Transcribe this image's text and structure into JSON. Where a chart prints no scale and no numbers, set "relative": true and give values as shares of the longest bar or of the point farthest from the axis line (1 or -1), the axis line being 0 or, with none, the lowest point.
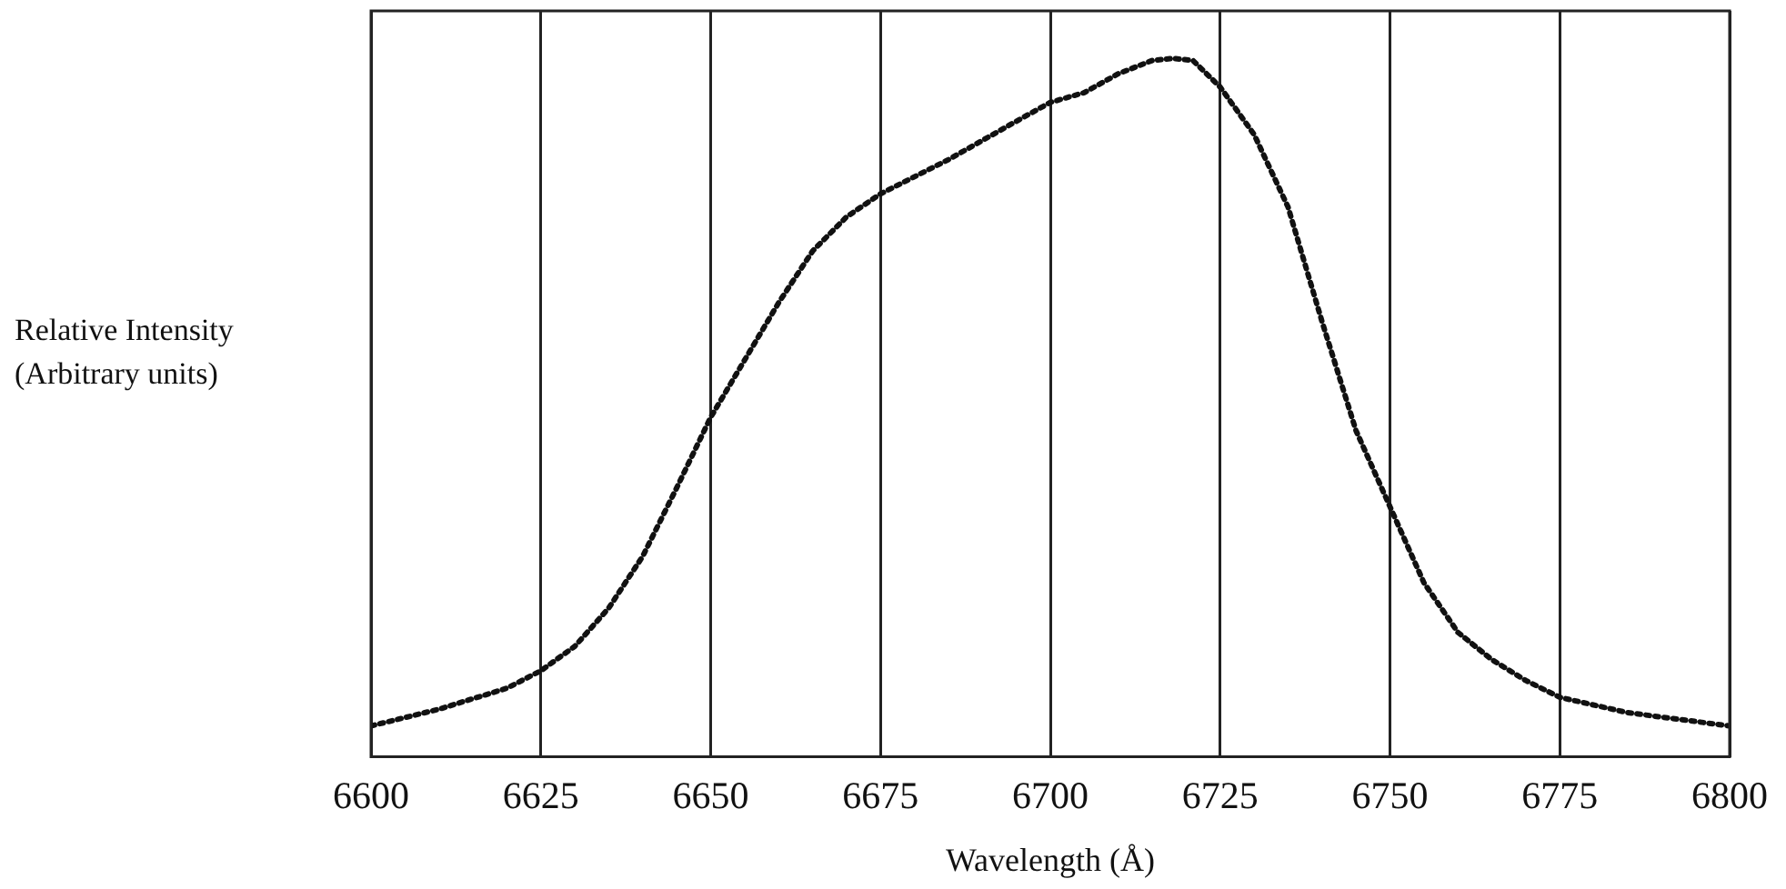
{
  "chart_data": {
    "type": "line",
    "relative": true,
    "xlabel": "Wavelength (Å)",
    "ylabel": "Relative Intensity (Arbitrary units)",
    "xlim": [
      6600,
      6800
    ],
    "xticks": [
      6600,
      6625,
      6650,
      6675,
      6700,
      6725,
      6750,
      6775,
      6800
    ],
    "grid": "x",
    "legend": false,
    "marker": "none",
    "line_style": "dotted",
    "series": [
      {
        "color": "#111111",
        "x": [
          6600,
          6610,
          6620,
          6625,
          6630,
          6635,
          6640,
          6645,
          6650,
          6655,
          6660,
          6665,
          6670,
          6675,
          6685,
          6695,
          6700,
          6705,
          6710,
          6715,
          6718,
          6721,
          6725,
          6730,
          6735,
          6740,
          6745,
          6750,
          6755,
          6760,
          6765,
          6770,
          6775,
          6785,
          6800
        ],
        "values": [
          0.044,
          0.068,
          0.098,
          0.123,
          0.158,
          0.213,
          0.287,
          0.385,
          0.486,
          0.568,
          0.65,
          0.724,
          0.773,
          0.806,
          0.855,
          0.91,
          0.937,
          0.951,
          0.978,
          0.997,
          1,
          0.997,
          0.959,
          0.891,
          0.787,
          0.623,
          0.467,
          0.358,
          0.249,
          0.178,
          0.139,
          0.109,
          0.085,
          0.063,
          0.044
        ]
      }
    ]
  }
}
